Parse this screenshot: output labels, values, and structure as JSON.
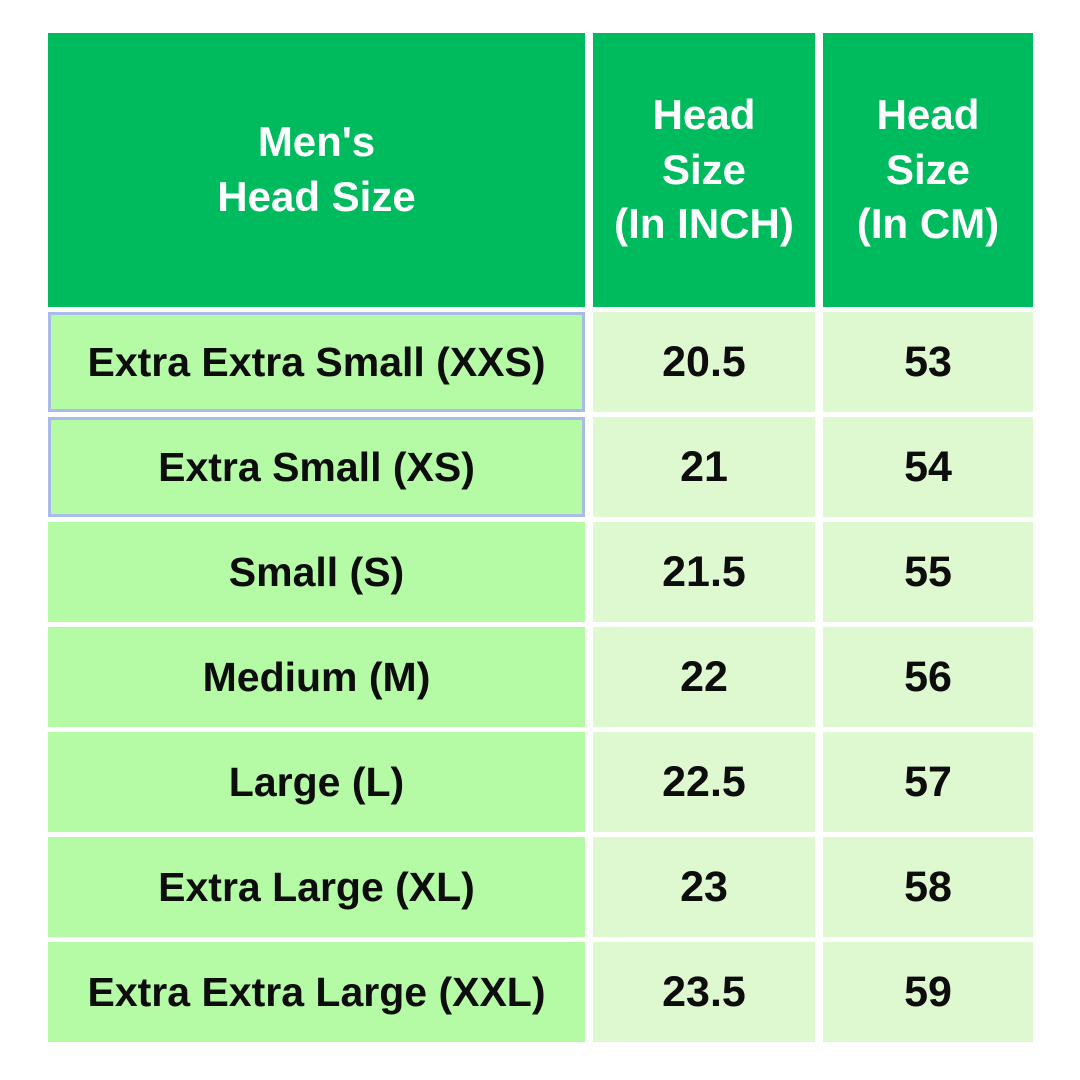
{
  "table": {
    "header": {
      "col1": "Men's\nHead Size",
      "col2": "Head\nSize\n(In INCH)",
      "col3": "Head\nSize\n(In CM)"
    },
    "rows": [
      {
        "size": "Extra Extra Small (XXS)",
        "inch": "20.5",
        "cm": "53",
        "highlighted": true
      },
      {
        "size": "Extra Small (XS)",
        "inch": "21",
        "cm": "54",
        "highlighted": true
      },
      {
        "size": "Small (S)",
        "inch": "21.5",
        "cm": "55",
        "highlighted": false
      },
      {
        "size": "Medium (M)",
        "inch": "22",
        "cm": "56",
        "highlighted": false
      },
      {
        "size": "Large (L)",
        "inch": "22.5",
        "cm": "57",
        "highlighted": false
      },
      {
        "size": "Extra Large (XL)",
        "inch": "23",
        "cm": "58",
        "highlighted": false
      },
      {
        "size": "Extra Extra Large (XXL)",
        "inch": "23.5",
        "cm": "59",
        "highlighted": false
      }
    ],
    "colors": {
      "header_bg": "#00BB5E",
      "header_text": "#FFFFFF",
      "label_cell_bg": "#B5FAA4",
      "value_cell_bg": "#DEF8D0",
      "highlight_border": "#A9BCE9",
      "text_color": "#0D0D0D",
      "page_bg": "#FFFFFF"
    }
  },
  "chart_data": {
    "type": "table",
    "title": "Men's Head Size",
    "columns": [
      "Men's Head Size",
      "Head Size (In INCH)",
      "Head Size (In CM)"
    ],
    "rows": [
      [
        "Extra Extra Small (XXS)",
        20.5,
        53
      ],
      [
        "Extra Small (XS)",
        21,
        54
      ],
      [
        "Small (S)",
        21.5,
        55
      ],
      [
        "Medium (M)",
        22,
        56
      ],
      [
        "Large (L)",
        22.5,
        57
      ],
      [
        "Extra Large (XL)",
        23,
        58
      ],
      [
        "Extra Extra Large (XXL)",
        23.5,
        59
      ]
    ],
    "layout_hints": {
      "header_position": "top",
      "highlighted_cells": [
        "Extra Extra Small (XXS)",
        "Extra Small (XS)"
      ]
    }
  }
}
